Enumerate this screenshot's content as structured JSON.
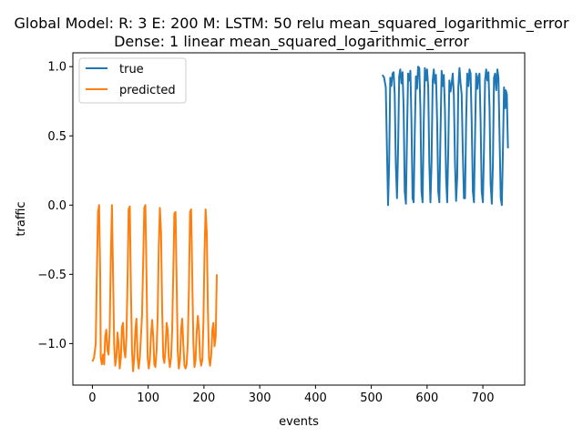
{
  "chart_data": {
    "type": "line",
    "title_line1": "Global Model: R: 3 E: 200 M: LSTM: 50 relu mean_squared_logarithmic_error",
    "title_line2": "Dense: 1 linear mean_squared_logarithmic_error",
    "xlabel": "events",
    "ylabel": "traffic",
    "xlim": [
      -35,
      775
    ],
    "ylim": [
      -1.3,
      1.1
    ],
    "xticks": [
      0,
      100,
      200,
      300,
      400,
      500,
      600,
      700
    ],
    "yticks": [
      -1.0,
      -0.5,
      0.0,
      0.5,
      1.0
    ],
    "xtick_labels": [
      "0",
      "100",
      "200",
      "300",
      "400",
      "500",
      "600",
      "700"
    ],
    "ytick_labels": [
      "−1.0",
      "−0.5",
      "0.0",
      "0.5",
      "1.0"
    ],
    "legend_position": "top-left",
    "series": [
      {
        "name": "true",
        "color": "#1f77b4",
        "points": [
          [
            520,
            0.94
          ],
          [
            523,
            0.92
          ],
          [
            526,
            0.85
          ],
          [
            528,
            0.4
          ],
          [
            530,
            0.0
          ],
          [
            532,
            0.3
          ],
          [
            534,
            0.92
          ],
          [
            536,
            0.86
          ],
          [
            538,
            0.95
          ],
          [
            540,
            0.96
          ],
          [
            542,
            0.8
          ],
          [
            544,
            0.3
          ],
          [
            546,
            0.05
          ],
          [
            548,
            0.4
          ],
          [
            550,
            0.93
          ],
          [
            552,
            0.98
          ],
          [
            554,
            0.88
          ],
          [
            556,
            0.96
          ],
          [
            558,
            0.7
          ],
          [
            560,
            0.1
          ],
          [
            562,
            0.01
          ],
          [
            564,
            0.5
          ],
          [
            566,
            0.95
          ],
          [
            568,
            0.9
          ],
          [
            570,
            0.97
          ],
          [
            572,
            0.6
          ],
          [
            574,
            0.05
          ],
          [
            576,
            0.02
          ],
          [
            578,
            0.55
          ],
          [
            580,
            0.93
          ],
          [
            582,
            0.84
          ],
          [
            584,
            1.0
          ],
          [
            586,
            0.99
          ],
          [
            588,
            0.7
          ],
          [
            590,
            0.1
          ],
          [
            592,
            0.02
          ],
          [
            594,
            0.6
          ],
          [
            596,
            0.99
          ],
          [
            598,
            0.9
          ],
          [
            600,
            0.98
          ],
          [
            602,
            0.85
          ],
          [
            604,
            0.3
          ],
          [
            606,
            0.02
          ],
          [
            608,
            0.3
          ],
          [
            610,
            0.9
          ],
          [
            612,
            0.98
          ],
          [
            614,
            0.88
          ],
          [
            616,
            0.94
          ],
          [
            618,
            0.6
          ],
          [
            620,
            0.1
          ],
          [
            622,
            0.02
          ],
          [
            624,
            0.5
          ],
          [
            626,
            0.97
          ],
          [
            628,
            0.86
          ],
          [
            630,
            0.94
          ],
          [
            632,
            0.7
          ],
          [
            634,
            0.2
          ],
          [
            636,
            0.02
          ],
          [
            638,
            0.4
          ],
          [
            640,
            0.9
          ],
          [
            642,
            0.82
          ],
          [
            644,
            0.88
          ],
          [
            646,
            0.95
          ],
          [
            648,
            0.8
          ],
          [
            650,
            0.3
          ],
          [
            652,
            0.03
          ],
          [
            654,
            0.2
          ],
          [
            656,
            0.85
          ],
          [
            658,
            0.99
          ],
          [
            660,
            0.88
          ],
          [
            662,
            0.8
          ],
          [
            664,
            0.4
          ],
          [
            666,
            0.05
          ],
          [
            668,
            0.05
          ],
          [
            670,
            0.6
          ],
          [
            672,
            0.95
          ],
          [
            674,
            0.86
          ],
          [
            676,
            0.98
          ],
          [
            678,
            0.95
          ],
          [
            680,
            0.6
          ],
          [
            682,
            0.1
          ],
          [
            684,
            0.02
          ],
          [
            686,
            0.5
          ],
          [
            688,
            0.95
          ],
          [
            690,
            0.84
          ],
          [
            692,
            0.93
          ],
          [
            694,
            0.95
          ],
          [
            696,
            0.6
          ],
          [
            698,
            0.1
          ],
          [
            700,
            0.02
          ],
          [
            702,
            0.4
          ],
          [
            704,
            0.9
          ],
          [
            706,
            0.98
          ],
          [
            708,
            0.9
          ],
          [
            710,
            0.96
          ],
          [
            712,
            0.7
          ],
          [
            714,
            0.15
          ],
          [
            716,
            0.01
          ],
          [
            718,
            0.3
          ],
          [
            720,
            0.92
          ],
          [
            722,
            0.95
          ],
          [
            724,
            0.83
          ],
          [
            726,
            0.98
          ],
          [
            728,
            0.92
          ],
          [
            730,
            0.5
          ],
          [
            732,
            0.05
          ],
          [
            734,
            0.0
          ],
          [
            736,
            0.4
          ],
          [
            738,
            0.85
          ],
          [
            740,
            0.7
          ],
          [
            741,
            0.83
          ],
          [
            743,
            0.8
          ],
          [
            745,
            0.41
          ]
        ]
      },
      {
        "name": "predicted",
        "color": "#ff7f0e",
        "points": [
          [
            0,
            -1.13
          ],
          [
            3,
            -1.1
          ],
          [
            6,
            -1.0
          ],
          [
            8,
            -0.5
          ],
          [
            10,
            -0.05
          ],
          [
            12,
            0.0
          ],
          [
            14,
            -0.5
          ],
          [
            15,
            -1.1
          ],
          [
            17,
            -1.15
          ],
          [
            19,
            -1.08
          ],
          [
            21,
            -1.15
          ],
          [
            23,
            -0.95
          ],
          [
            25,
            -0.9
          ],
          [
            27,
            -1.05
          ],
          [
            29,
            -1.08
          ],
          [
            31,
            -0.9
          ],
          [
            33,
            -0.4
          ],
          [
            35,
            0.0
          ],
          [
            37,
            -0.5
          ],
          [
            39,
            -1.0
          ],
          [
            41,
            -1.16
          ],
          [
            43,
            -1.1
          ],
          [
            45,
            -0.92
          ],
          [
            47,
            -1.0
          ],
          [
            49,
            -1.18
          ],
          [
            51,
            -1.1
          ],
          [
            53,
            -0.88
          ],
          [
            55,
            -0.85
          ],
          [
            57,
            -1.05
          ],
          [
            59,
            -1.1
          ],
          [
            61,
            -0.95
          ],
          [
            63,
            -0.55
          ],
          [
            65,
            -0.03
          ],
          [
            67,
            -0.01
          ],
          [
            69,
            -0.6
          ],
          [
            71,
            -1.05
          ],
          [
            73,
            -1.2
          ],
          [
            75,
            -1.1
          ],
          [
            77,
            -0.9
          ],
          [
            79,
            -0.82
          ],
          [
            81,
            -1.1
          ],
          [
            83,
            -1.18
          ],
          [
            85,
            -1.1
          ],
          [
            87,
            -0.95
          ],
          [
            89,
            -0.8
          ],
          [
            91,
            -0.4
          ],
          [
            93,
            -0.02
          ],
          [
            95,
            0.0
          ],
          [
            97,
            -0.5
          ],
          [
            99,
            -1.1
          ],
          [
            101,
            -1.18
          ],
          [
            103,
            -1.12
          ],
          [
            105,
            -0.95
          ],
          [
            107,
            -0.83
          ],
          [
            109,
            -0.95
          ],
          [
            111,
            -1.15
          ],
          [
            113,
            -1.17
          ],
          [
            115,
            -1.05
          ],
          [
            117,
            -0.8
          ],
          [
            119,
            -0.3
          ],
          [
            121,
            -0.02
          ],
          [
            123,
            -0.2
          ],
          [
            125,
            -0.75
          ],
          [
            127,
            -1.1
          ],
          [
            129,
            -1.14
          ],
          [
            131,
            -1.05
          ],
          [
            133,
            -0.85
          ],
          [
            135,
            -0.9
          ],
          [
            137,
            -1.1
          ],
          [
            139,
            -1.17
          ],
          [
            141,
            -1.1
          ],
          [
            143,
            -0.9
          ],
          [
            145,
            -0.5
          ],
          [
            147,
            -0.06
          ],
          [
            149,
            -0.05
          ],
          [
            151,
            -0.55
          ],
          [
            153,
            -1.05
          ],
          [
            155,
            -1.18
          ],
          [
            157,
            -1.12
          ],
          [
            159,
            -0.9
          ],
          [
            161,
            -0.82
          ],
          [
            163,
            -1.0
          ],
          [
            165,
            -1.16
          ],
          [
            167,
            -1.18
          ],
          [
            169,
            -1.15
          ],
          [
            171,
            -1.0
          ],
          [
            173,
            -0.6
          ],
          [
            175,
            -0.05
          ],
          [
            177,
            -0.03
          ],
          [
            179,
            -0.5
          ],
          [
            181,
            -1.0
          ],
          [
            183,
            -1.17
          ],
          [
            185,
            -1.12
          ],
          [
            187,
            -0.92
          ],
          [
            189,
            -0.8
          ],
          [
            191,
            -0.9
          ],
          [
            193,
            -1.1
          ],
          [
            195,
            -1.16
          ],
          [
            197,
            -1.12
          ],
          [
            199,
            -0.85
          ],
          [
            201,
            -0.35
          ],
          [
            203,
            -0.03
          ],
          [
            205,
            -0.2
          ],
          [
            207,
            -0.75
          ],
          [
            209,
            -1.1
          ],
          [
            211,
            -1.16
          ],
          [
            213,
            -1.08
          ],
          [
            215,
            -0.9
          ],
          [
            217,
            -0.85
          ],
          [
            219,
            -1.02
          ],
          [
            221,
            -0.95
          ],
          [
            223,
            -0.5
          ]
        ]
      }
    ]
  }
}
